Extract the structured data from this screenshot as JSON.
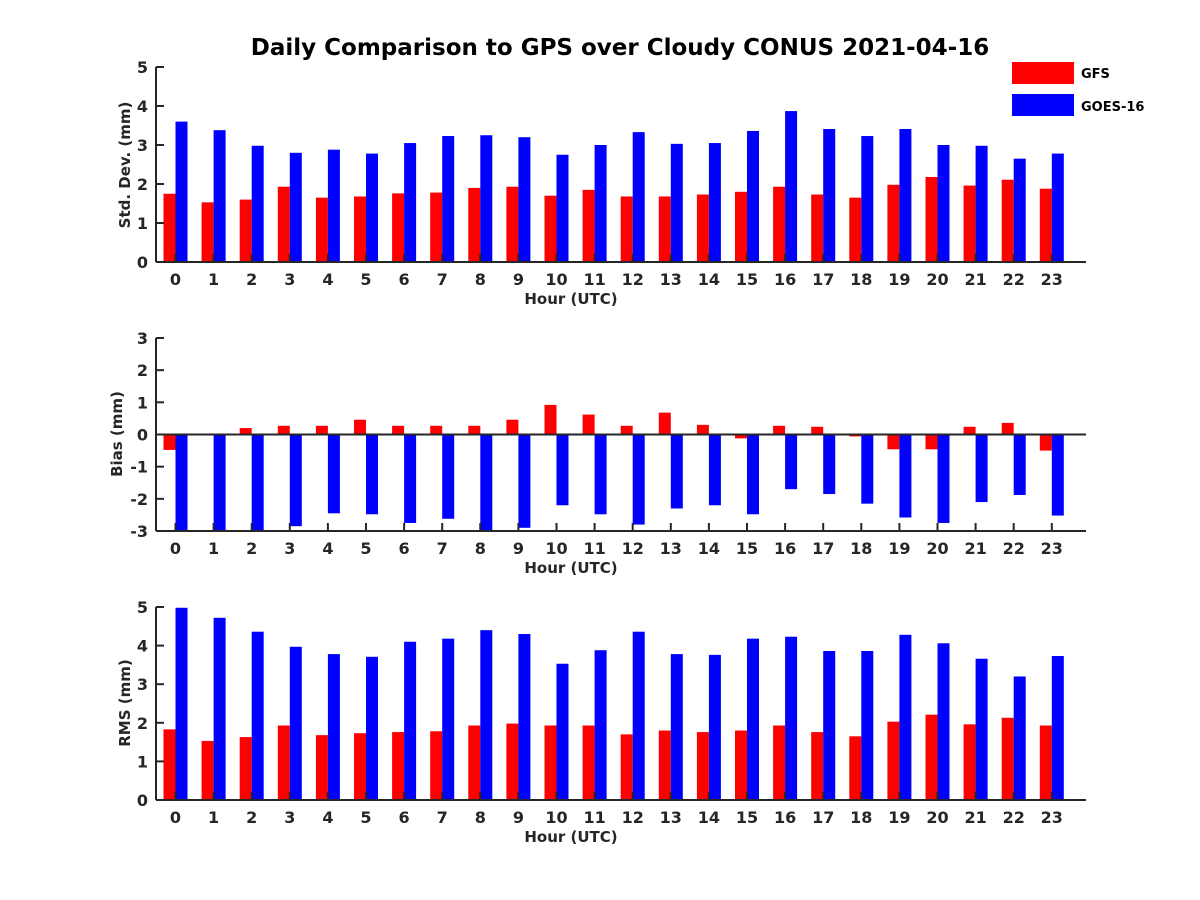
{
  "title": "Daily Comparison to GPS over Cloudy CONUS 2021-04-16",
  "legend": [
    {
      "name": "GFS",
      "color": "#ff0000"
    },
    {
      "name": "GOES-16",
      "color": "#0000ff"
    }
  ],
  "chart_data": [
    {
      "type": "bar",
      "ylabel": "Std. Dev. (mm)",
      "xlabel": "Hour (UTC)",
      "ylim": [
        0,
        5
      ],
      "yticks": [
        0,
        1,
        2,
        3,
        4,
        5
      ],
      "categories": [
        "0",
        "1",
        "2",
        "3",
        "4",
        "5",
        "6",
        "7",
        "8",
        "9",
        "10",
        "11",
        "12",
        "13",
        "14",
        "15",
        "16",
        "17",
        "18",
        "19",
        "20",
        "21",
        "22",
        "23"
      ],
      "series": [
        {
          "name": "GFS",
          "color": "#ff0000",
          "values": [
            1.75,
            1.53,
            1.6,
            1.93,
            1.65,
            1.68,
            1.76,
            1.78,
            1.9,
            1.93,
            1.7,
            1.85,
            1.68,
            1.68,
            1.73,
            1.8,
            1.93,
            1.73,
            1.65,
            1.98,
            2.18,
            1.96,
            2.11,
            1.88
          ]
        },
        {
          "name": "GOES-16",
          "color": "#0000ff",
          "values": [
            3.6,
            3.38,
            2.98,
            2.8,
            2.88,
            2.78,
            3.05,
            3.23,
            3.25,
            3.2,
            2.75,
            3.0,
            3.33,
            3.03,
            3.05,
            3.36,
            3.87,
            3.41,
            3.23,
            3.41,
            3.0,
            2.98,
            2.65,
            2.78
          ]
        }
      ]
    },
    {
      "type": "bar",
      "ylabel": "Bias (mm)",
      "xlabel": "Hour (UTC)",
      "ylim": [
        -3,
        3
      ],
      "yticks": [
        -3,
        -2,
        -1,
        0,
        1,
        2,
        3
      ],
      "categories": [
        "0",
        "1",
        "2",
        "3",
        "4",
        "5",
        "6",
        "7",
        "8",
        "9",
        "10",
        "11",
        "12",
        "13",
        "14",
        "15",
        "16",
        "17",
        "18",
        "19",
        "20",
        "21",
        "22",
        "23"
      ],
      "series": [
        {
          "name": "GFS",
          "color": "#ff0000",
          "values": [
            -0.48,
            0.0,
            0.2,
            0.27,
            0.27,
            0.46,
            0.27,
            0.27,
            0.27,
            0.46,
            0.92,
            0.62,
            0.27,
            0.68,
            0.3,
            -0.12,
            0.27,
            0.24,
            -0.06,
            -0.46,
            -0.46,
            0.24,
            0.36,
            -0.5
          ]
        },
        {
          "name": "GOES-16",
          "color": "#0000ff",
          "values": [
            -3.0,
            -3.0,
            -3.0,
            -2.85,
            -2.45,
            -2.48,
            -2.75,
            -2.62,
            -3.0,
            -2.9,
            -2.2,
            -2.48,
            -2.8,
            -2.3,
            -2.2,
            -2.48,
            -1.7,
            -1.85,
            -2.15,
            -2.58,
            -2.75,
            -2.1,
            -1.88,
            -2.52
          ]
        }
      ]
    },
    {
      "type": "bar",
      "ylabel": "RMS (mm)",
      "xlabel": "Hour (UTC)",
      "ylim": [
        0,
        5
      ],
      "yticks": [
        0,
        1,
        2,
        3,
        4,
        5
      ],
      "categories": [
        "0",
        "1",
        "2",
        "3",
        "4",
        "5",
        "6",
        "7",
        "8",
        "9",
        "10",
        "11",
        "12",
        "13",
        "14",
        "15",
        "16",
        "17",
        "18",
        "19",
        "20",
        "21",
        "22",
        "23"
      ],
      "series": [
        {
          "name": "GFS",
          "color": "#ff0000",
          "values": [
            1.83,
            1.53,
            1.63,
            1.93,
            1.68,
            1.73,
            1.76,
            1.78,
            1.93,
            1.98,
            1.93,
            1.93,
            1.7,
            1.8,
            1.76,
            1.8,
            1.93,
            1.76,
            1.65,
            2.03,
            2.21,
            1.96,
            2.13,
            1.93
          ]
        },
        {
          "name": "GOES-16",
          "color": "#0000ff",
          "values": [
            4.98,
            4.72,
            4.36,
            3.97,
            3.78,
            3.71,
            4.1,
            4.18,
            4.4,
            4.3,
            3.53,
            3.88,
            4.36,
            3.78,
            3.76,
            4.18,
            4.23,
            3.86,
            3.86,
            4.28,
            4.06,
            3.66,
            3.2,
            3.73
          ]
        }
      ]
    }
  ]
}
